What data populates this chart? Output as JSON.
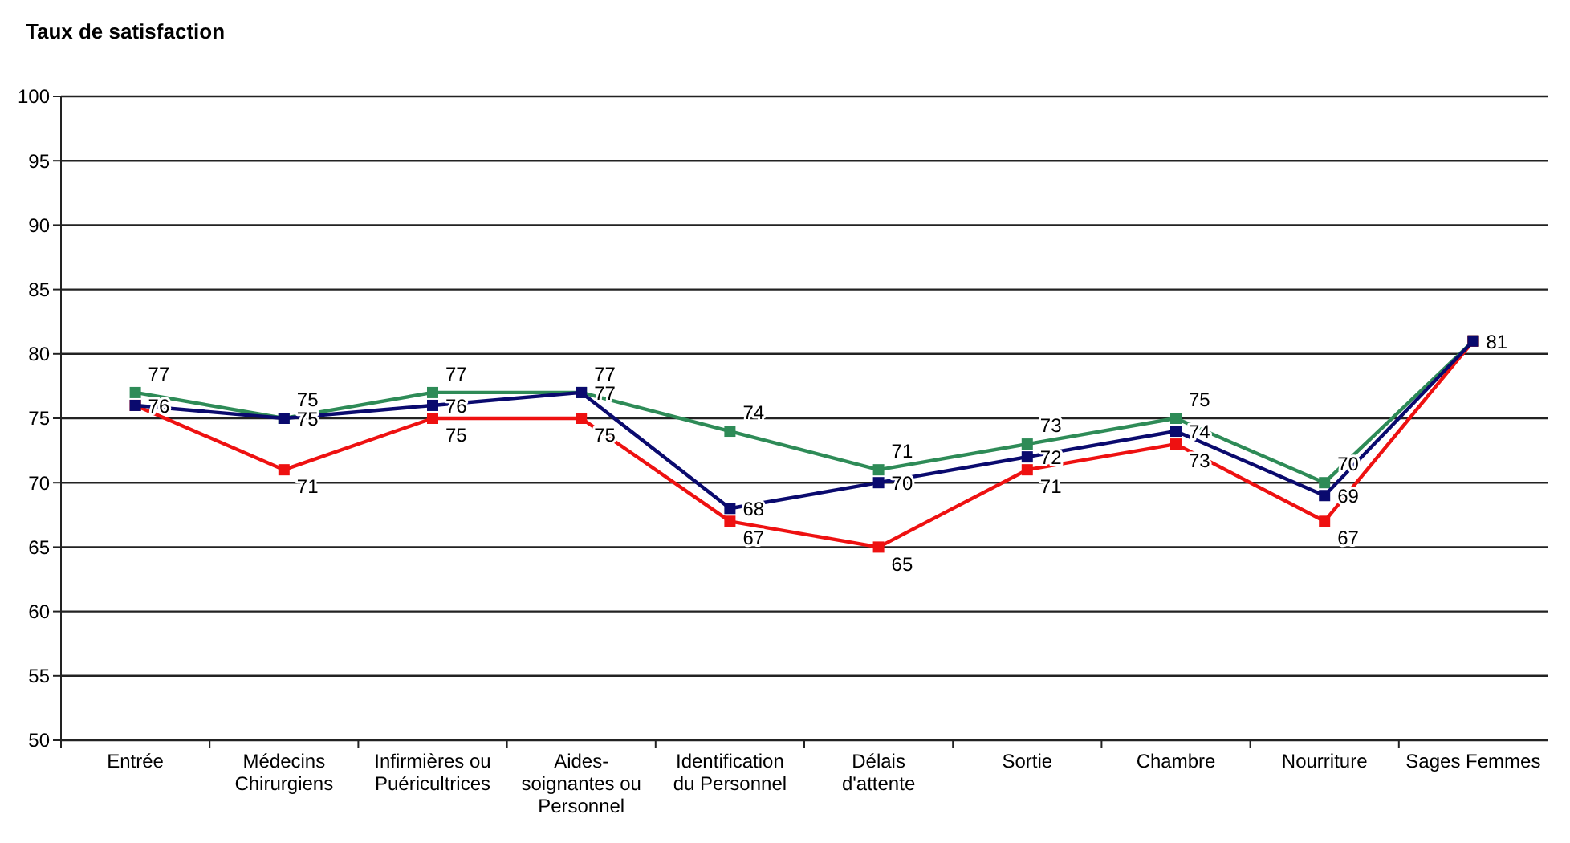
{
  "chart_data": {
    "type": "line",
    "ylabel": "Taux de satisfaction",
    "categories": [
      "Entrée",
      "Médecins Chirurgiens",
      "Infirmières ou Puéricultrices",
      "Aides-soignantes ou Personnel",
      "Identification du Personnel",
      "Délais d'attente",
      "Sortie",
      "Chambre",
      "Nourriture",
      "Sages Femmes"
    ],
    "series": [
      {
        "color": "#2e8b57",
        "values": [
          77,
          75,
          77,
          77,
          74,
          71,
          73,
          75,
          70,
          81
        ],
        "value_labels": [
          "77",
          "75",
          "77",
          "77",
          "74",
          "71",
          "73",
          "75",
          "70",
          null
        ]
      },
      {
        "color": "#ee1111",
        "values": [
          76,
          71,
          75,
          75,
          67,
          65,
          71,
          73,
          67,
          81
        ],
        "value_labels": [
          null,
          "71",
          "75",
          "75",
          "67",
          "65",
          "71",
          "73",
          "67",
          null
        ]
      },
      {
        "color": "#0a0a6e",
        "values": [
          76,
          75,
          76,
          77,
          68,
          70,
          72,
          74,
          69,
          81
        ],
        "value_labels": [
          "76",
          "75",
          "76",
          "77",
          "68",
          "70",
          "72",
          "74",
          "69",
          "81"
        ]
      }
    ],
    "ylim": [
      50,
      100
    ],
    "yticks": [
      50,
      55,
      60,
      65,
      70,
      75,
      80,
      85,
      90,
      95,
      100
    ],
    "grid": "y",
    "marker": "square",
    "line_style": "solid"
  }
}
